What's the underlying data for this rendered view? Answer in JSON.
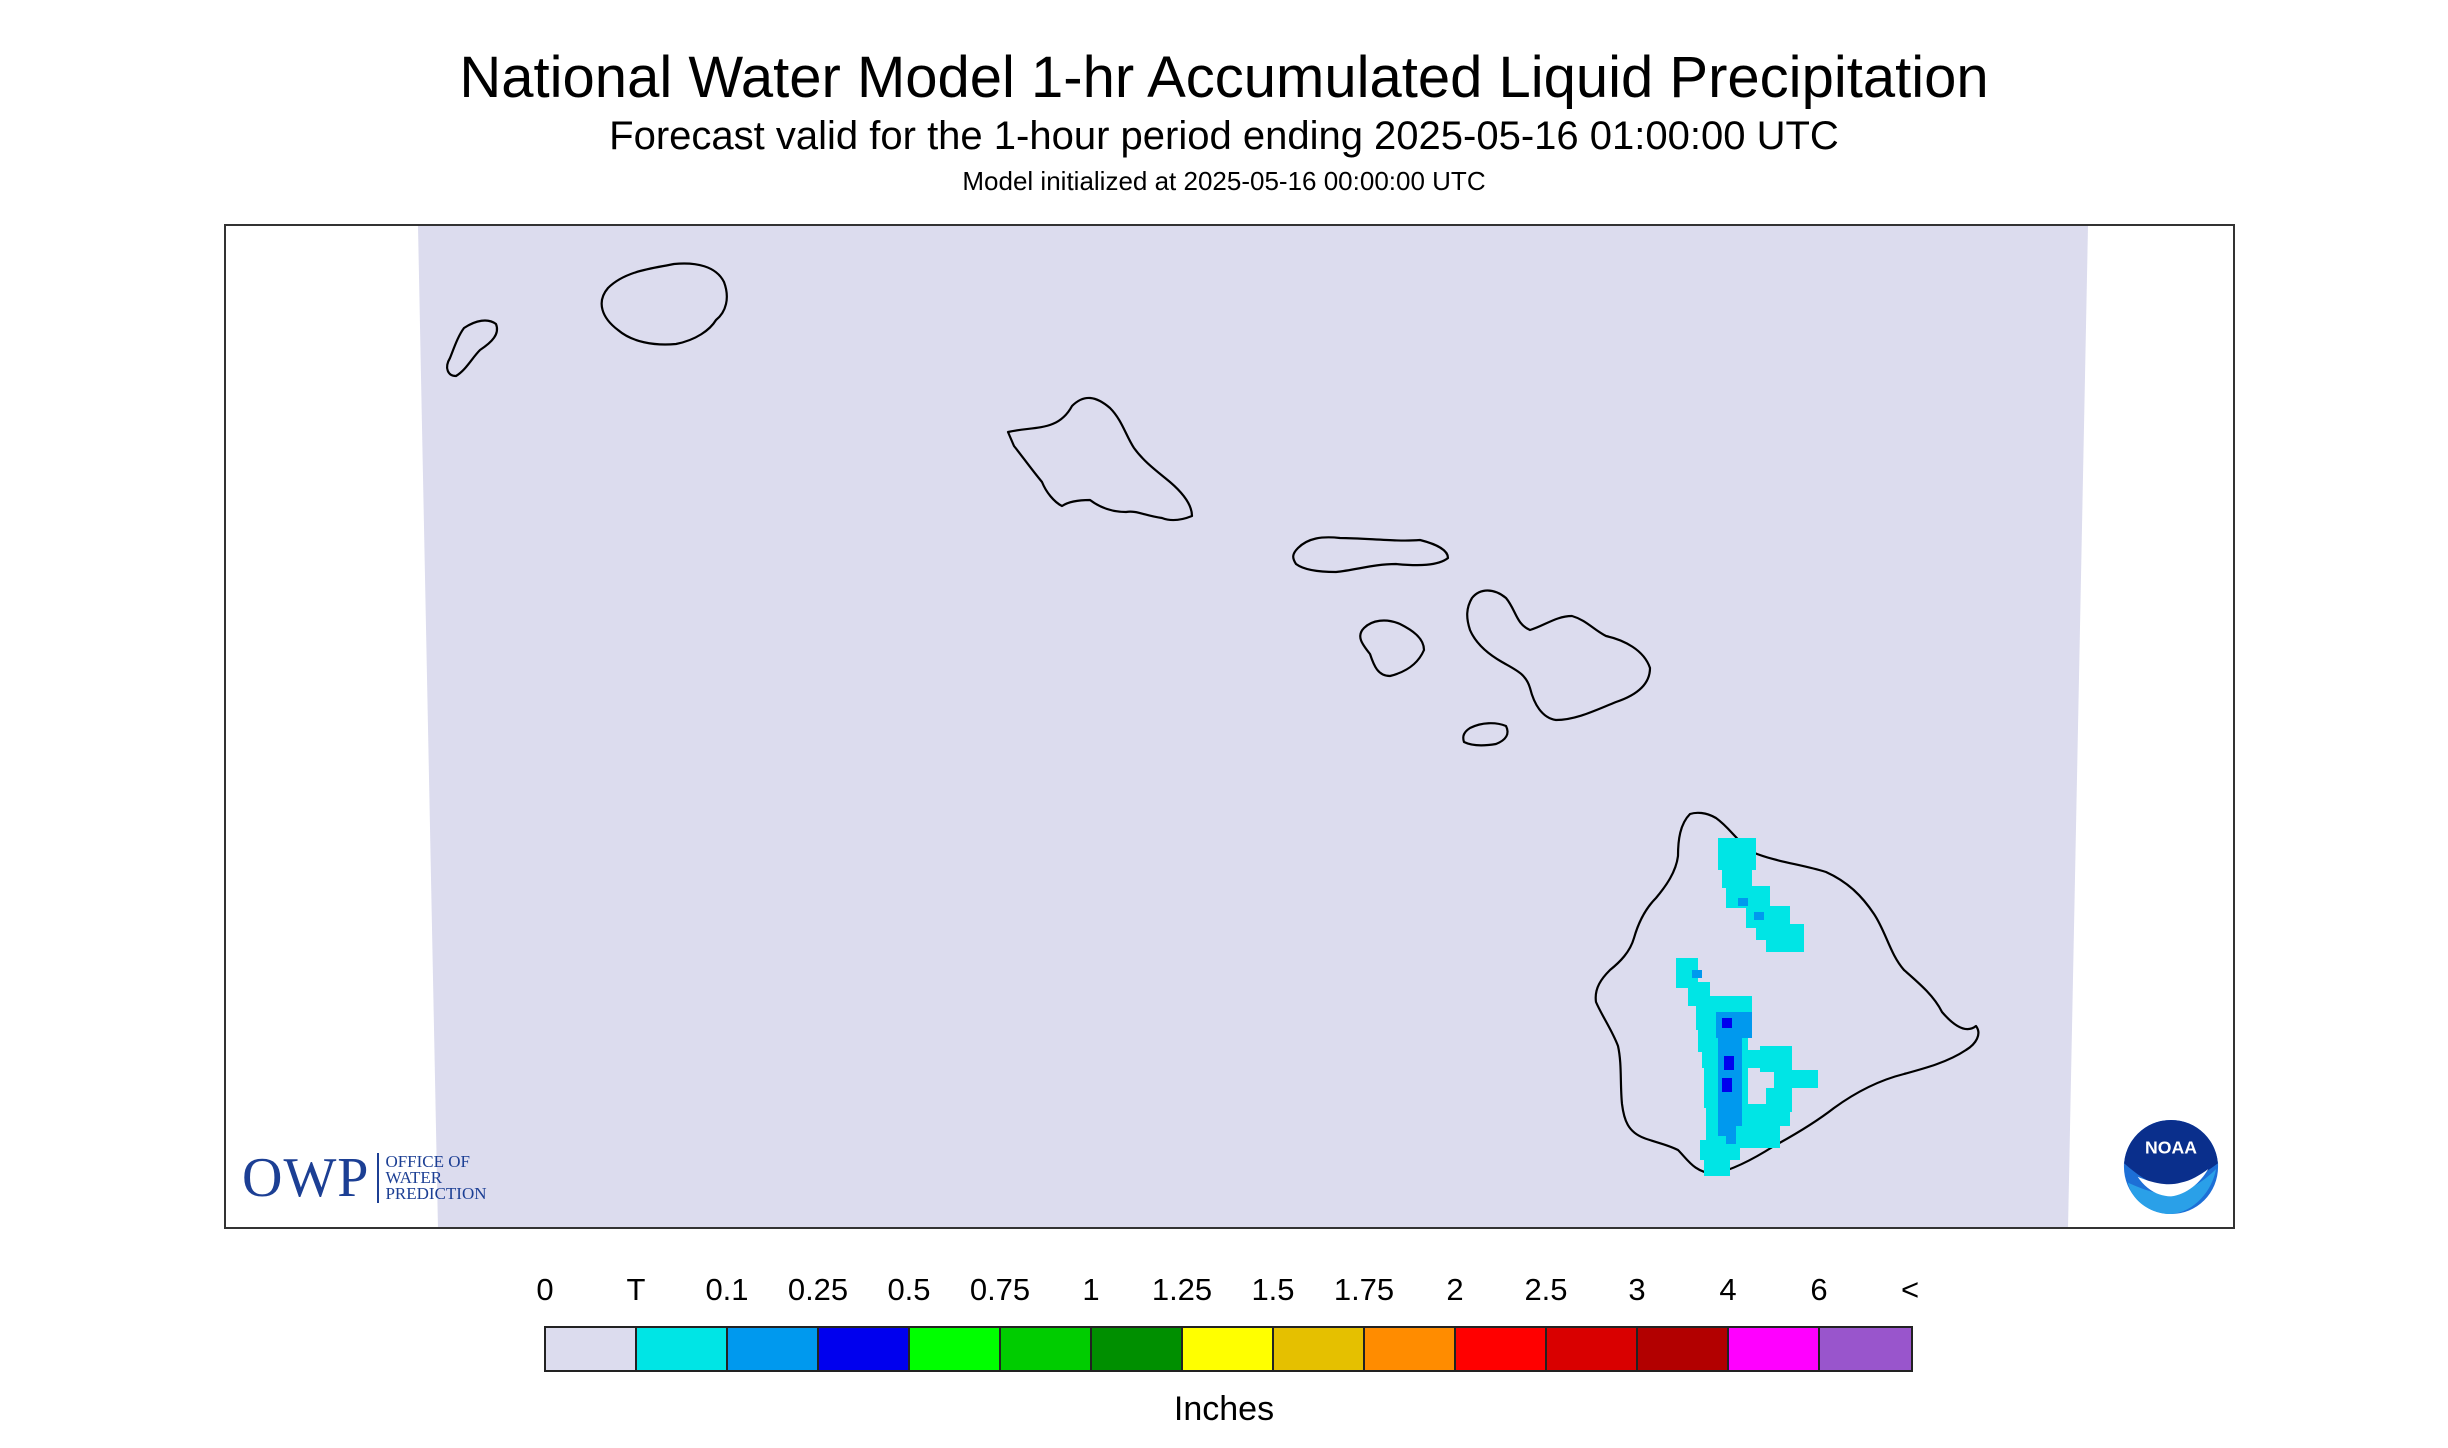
{
  "header": {
    "title": "National Water Model 1-hr Accumulated Liquid Precipitation",
    "subtitle": "Forecast valid for the 1-hour period ending 2025-05-16 01:00:00 UTC",
    "init_text": "Model initialized at 2025-05-16 00:00:00 UTC"
  },
  "map": {
    "region": "Hawaiian Islands",
    "background_color": "#dcdcee",
    "coastline_color": "#000000"
  },
  "legend": {
    "units": "Inches",
    "labels": [
      "0",
      "T",
      "0.1",
      "0.25",
      "0.5",
      "0.75",
      "1",
      "1.25",
      "1.5",
      "1.75",
      "2",
      "2.5",
      "3",
      "4",
      "6",
      "<"
    ],
    "colors": [
      "#dcdcee",
      "#00e5e5",
      "#0099ee",
      "#0000ee",
      "#00ff00",
      "#00cc00",
      "#008f00",
      "#ffff00",
      "#e5c000",
      "#ff8c00",
      "#ff0000",
      "#d90000",
      "#b20000",
      "#ff00ff",
      "#9955cc"
    ]
  },
  "logos": {
    "owp": {
      "mark": "OWP",
      "line1": "OFFICE OF",
      "line2": "WATER",
      "line3": "PREDICTION"
    },
    "noaa": {
      "text": "NOAA"
    }
  }
}
